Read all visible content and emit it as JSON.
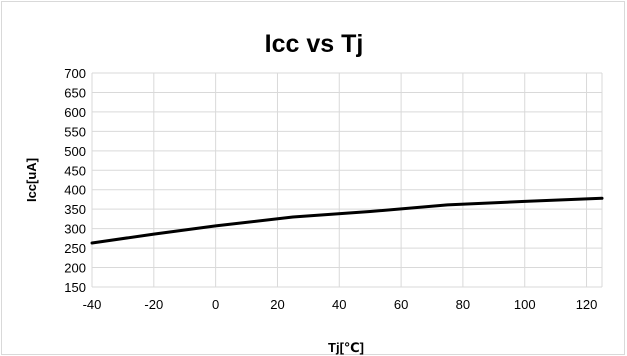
{
  "chart_data": {
    "type": "line",
    "title": "Icc vs Tj",
    "xlabel": "Tj[℃]",
    "ylabel": "Icc[uA]",
    "xlim": [
      -40,
      125
    ],
    "ylim": [
      150,
      700
    ],
    "xticks": [
      -40,
      -20,
      0,
      20,
      40,
      60,
      80,
      100,
      120
    ],
    "yticks": [
      150,
      200,
      250,
      300,
      350,
      400,
      450,
      500,
      550,
      600,
      650,
      700
    ],
    "grid": true,
    "series": [
      {
        "x": [
          -40,
          -20,
          0,
          25,
          50,
          75,
          100,
          125
        ],
        "values": [
          263,
          286,
          307,
          330,
          344,
          361,
          370,
          378
        ],
        "color": "#000000"
      }
    ]
  }
}
